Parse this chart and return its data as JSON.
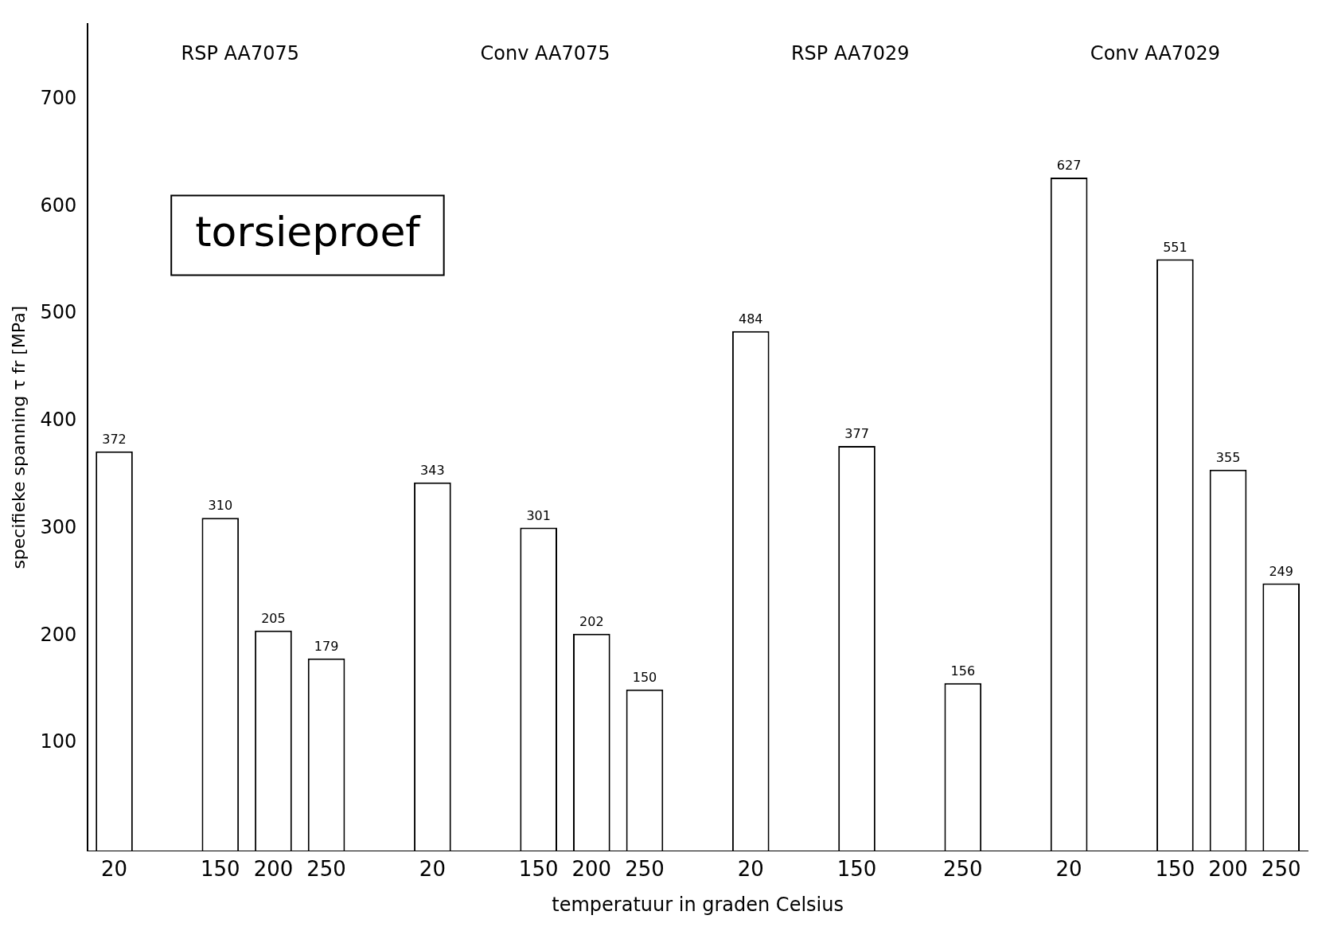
{
  "chart_data": {
    "type": "bar",
    "title": null,
    "xlabel": "temperatuur in graden Celsius",
    "ylabel": "specifieke spanning τ fr [MPa]",
    "categories": [
      "20",
      null,
      "150",
      "200",
      "250",
      null,
      "20",
      null,
      "150",
      "200",
      "250",
      null,
      "20",
      null,
      "150",
      null,
      "250",
      null,
      "20",
      null,
      "150",
      "200",
      "250"
    ],
    "values": [
      372,
      null,
      310,
      205,
      179,
      null,
      343,
      null,
      301,
      202,
      150,
      null,
      484,
      null,
      377,
      null,
      156,
      null,
      627,
      null,
      551,
      355,
      249
    ],
    "color": "#ffffff",
    "ylim": [
      0,
      770
    ],
    "yticks": [
      100,
      200,
      300,
      400,
      500,
      600,
      700
    ],
    "grid": false,
    "legend": false,
    "data_labels": true,
    "annotations": [
      "RSP AA7075",
      "Conv AA7075",
      "RSP AA7029",
      "Conv AA7029",
      "torsieproef"
    ]
  }
}
